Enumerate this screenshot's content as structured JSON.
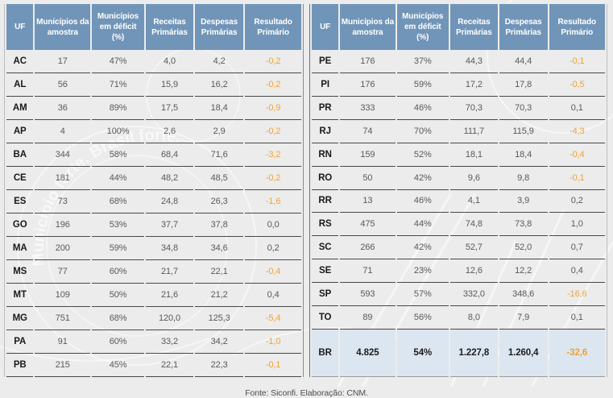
{
  "watermark": {
    "slogan": "Município forte. Brasil forte."
  },
  "footer": {
    "text": "Fonte: Siconfi. Elaboração: CNM."
  },
  "columns": [
    "UF",
    "Municípios da amostra",
    "Municípios em déficit (%)",
    "Receitas Primárias",
    "Despesas Primárias",
    "Resultado Primário"
  ],
  "left_table": {
    "rows": [
      [
        "AC",
        "17",
        "47%",
        "4,0",
        "4,2",
        "-0,2"
      ],
      [
        "AL",
        "56",
        "71%",
        "15,9",
        "16,2",
        "-0,2"
      ],
      [
        "AM",
        "36",
        "89%",
        "17,5",
        "18,4",
        "-0,9"
      ],
      [
        "AP",
        "4",
        "100%",
        "2,6",
        "2,9",
        "-0,2"
      ],
      [
        "BA",
        "344",
        "58%",
        "68,4",
        "71,6",
        "-3,2"
      ],
      [
        "CE",
        "181",
        "44%",
        "48,2",
        "48,5",
        "-0,2"
      ],
      [
        "ES",
        "73",
        "68%",
        "24,8",
        "26,3",
        "-1,6"
      ],
      [
        "GO",
        "196",
        "53%",
        "37,7",
        "37,8",
        "0,0"
      ],
      [
        "MA",
        "200",
        "59%",
        "34,8",
        "34,6",
        "0,2"
      ],
      [
        "MS",
        "77",
        "60%",
        "21,7",
        "22,1",
        "-0,4"
      ],
      [
        "MT",
        "109",
        "50%",
        "21,6",
        "21,2",
        "0,4"
      ],
      [
        "MG",
        "751",
        "68%",
        "120,0",
        "125,3",
        "-5,4"
      ],
      [
        "PA",
        "91",
        "60%",
        "33,2",
        "34,2",
        "-1,0"
      ],
      [
        "PB",
        "215",
        "45%",
        "22,1",
        "22,3",
        "-0,1"
      ]
    ]
  },
  "right_table": {
    "rows": [
      [
        "PE",
        "176",
        "37%",
        "44,3",
        "44,4",
        "-0,1"
      ],
      [
        "PI",
        "176",
        "59%",
        "17,2",
        "17,8",
        "-0,5"
      ],
      [
        "PR",
        "333",
        "46%",
        "70,3",
        "70,3",
        "0,1"
      ],
      [
        "RJ",
        "74",
        "70%",
        "111,7",
        "115,9",
        "-4,3"
      ],
      [
        "RN",
        "159",
        "52%",
        "18,1",
        "18,4",
        "-0,4"
      ],
      [
        "RO",
        "50",
        "42%",
        "9,6",
        "9,8",
        "-0,1"
      ],
      [
        "RR",
        "13",
        "46%",
        "4,1",
        "3,9",
        "0,2"
      ],
      [
        "RS",
        "475",
        "44%",
        "74,8",
        "73,8",
        "1,0"
      ],
      [
        "SC",
        "266",
        "42%",
        "52,7",
        "52,0",
        "0,7"
      ],
      [
        "SE",
        "71",
        "23%",
        "12,6",
        "12,2",
        "0,4"
      ],
      [
        "SP",
        "593",
        "57%",
        "332,0",
        "348,6",
        "-16,6"
      ],
      [
        "TO",
        "89",
        "56%",
        "8,0",
        "7,9",
        "0,1"
      ]
    ],
    "total": [
      "BR",
      "4.825",
      "54%",
      "1.227,8",
      "1.260,4",
      "-32,6"
    ]
  },
  "colors": {
    "header_bg": "#7195b8",
    "total_row_bg": "#dce6f0",
    "negative_value": "#f0a231",
    "page_bg": "#ececec"
  }
}
